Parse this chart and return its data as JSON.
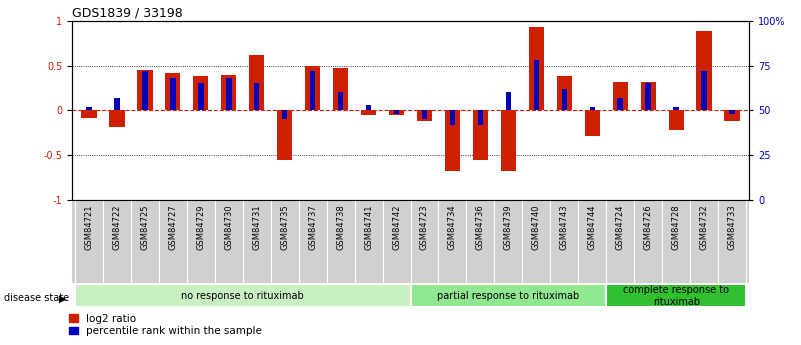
{
  "title": "GDS1839 / 33198",
  "samples": [
    "GSM84721",
    "GSM84722",
    "GSM84725",
    "GSM84727",
    "GSM84729",
    "GSM84730",
    "GSM84731",
    "GSM84735",
    "GSM84737",
    "GSM84738",
    "GSM84741",
    "GSM84742",
    "GSM84723",
    "GSM84734",
    "GSM84736",
    "GSM84739",
    "GSM84740",
    "GSM84743",
    "GSM84744",
    "GSM84724",
    "GSM84726",
    "GSM84728",
    "GSM84732",
    "GSM84733"
  ],
  "log2_ratio": [
    -0.08,
    -0.18,
    0.45,
    0.42,
    0.38,
    0.4,
    0.62,
    -0.55,
    0.5,
    0.47,
    -0.05,
    -0.05,
    -0.12,
    -0.68,
    -0.55,
    -0.68,
    0.93,
    0.38,
    -0.28,
    0.32,
    0.32,
    -0.22,
    0.88,
    -0.12
  ],
  "percentile_rank": [
    52,
    57,
    72,
    68,
    65,
    68,
    65,
    45,
    72,
    60,
    53,
    48,
    45,
    42,
    42,
    60,
    78,
    62,
    52,
    57,
    65,
    52,
    72,
    48
  ],
  "groups": [
    {
      "label": "no response to rituximab",
      "start": 0,
      "end": 11,
      "color": "#c8f0c0"
    },
    {
      "label": "partial response to rituximab",
      "start": 12,
      "end": 18,
      "color": "#90e890"
    },
    {
      "label": "complete response to\nrituximab",
      "start": 19,
      "end": 23,
      "color": "#30c030"
    }
  ],
  "bar_color": "#cc2000",
  "point_color": "#0000bb",
  "bg_label": "#d0d0d0",
  "ylim": [
    -1,
    1
  ],
  "y2lim": [
    0,
    100
  ],
  "yticks_left": [
    -1,
    -0.5,
    0,
    0.5,
    1
  ],
  "yticks_right": [
    0,
    25,
    50,
    75,
    100
  ],
  "title_fontsize": 9,
  "tick_fontsize": 7,
  "label_fontsize": 6,
  "legend_fontsize": 7.5,
  "group_fontsize": 7
}
